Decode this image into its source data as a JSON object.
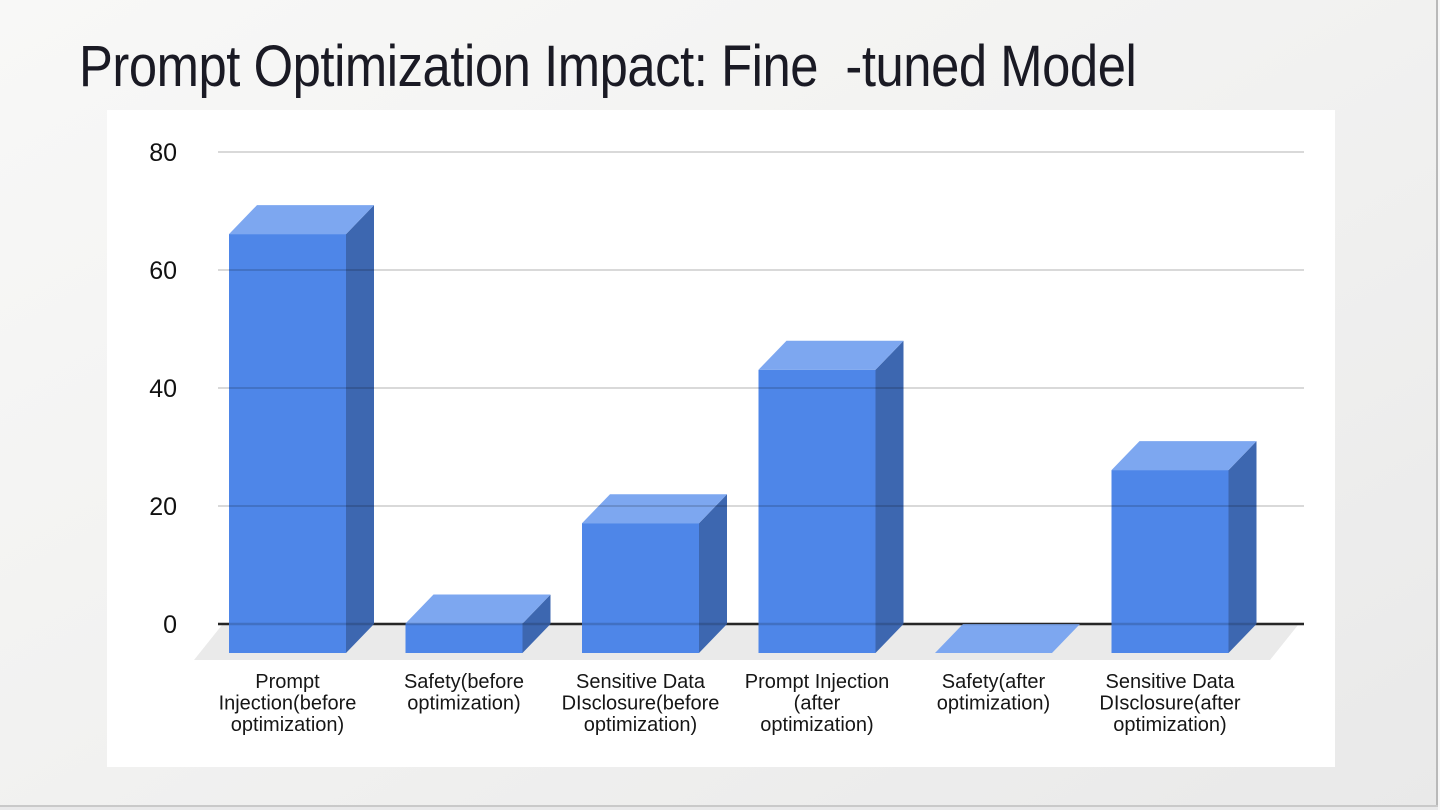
{
  "slide": {
    "title": "Prompt Optimization Impact: Fine  -tuned Model"
  },
  "chart_data": {
    "type": "bar",
    "variant": "3d-column",
    "title": "",
    "xlabel": "",
    "ylabel": "",
    "categories": [
      "Prompt Injection(before optimization)",
      "Safety(before optimization)",
      "Sensitive Data DIsclosure(before optimization)",
      "Prompt Injection (after optimization)",
      "Safety(after optimization)",
      "Sensitive Data DIsclosure(after optimization)"
    ],
    "category_lines": [
      [
        "Prompt",
        "Injection(before",
        "optimization)"
      ],
      [
        "Safety(before",
        "optimization)"
      ],
      [
        "Sensitive Data",
        "DIsclosure(before",
        "optimization)"
      ],
      [
        "Prompt Injection",
        "(after",
        "optimization)"
      ],
      [
        "Safety(after",
        "optimization)"
      ],
      [
        "Sensitive Data",
        "DIsclosure(after",
        "optimization)"
      ]
    ],
    "values": [
      71,
      5,
      22,
      48,
      0,
      31
    ],
    "y_ticks": [
      0,
      20,
      40,
      60,
      80
    ],
    "ylim": [
      0,
      80
    ],
    "grid": true,
    "legend": "none",
    "colors": {
      "bar_front": "#4e86e8",
      "bar_top": "#7da7f0",
      "bar_side": "#3d67b0",
      "floor": "#eaeaea",
      "gridline": "#cccccc",
      "zero_line": "#2e2e2e",
      "tick_text": "#111111",
      "category_text": "#161616"
    }
  }
}
